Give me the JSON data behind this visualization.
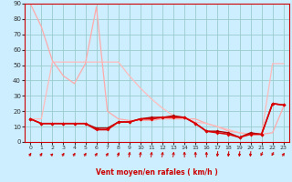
{
  "xlabel": "Vent moyen/en rafales ( km/h )",
  "background_color": "#cceeff",
  "grid_color": "#99cccc",
  "xlim": [
    -0.5,
    23.5
  ],
  "ylim": [
    0,
    90
  ],
  "yticks": [
    0,
    10,
    20,
    30,
    40,
    50,
    60,
    70,
    80,
    90
  ],
  "x_ticks": [
    0,
    1,
    2,
    3,
    4,
    5,
    6,
    7,
    8,
    9,
    10,
    11,
    12,
    13,
    14,
    15,
    16,
    17,
    18,
    19,
    20,
    21,
    22,
    23
  ],
  "line_light1": {
    "x": [
      0,
      1,
      2,
      3,
      4,
      5,
      6,
      7,
      8,
      9,
      10,
      11,
      12,
      13,
      14,
      15,
      16,
      17,
      18,
      19,
      20,
      21,
      22,
      23
    ],
    "y": [
      90,
      75,
      53,
      43,
      38,
      51,
      88,
      20,
      15,
      14,
      14,
      14,
      15,
      15,
      15,
      15,
      12,
      10,
      7,
      6,
      5,
      5,
      6,
      23
    ],
    "color": "#ffaaaa",
    "lw": 0.9
  },
  "line_light2": {
    "x": [
      0,
      1,
      2,
      3,
      4,
      5,
      6,
      7,
      8,
      9,
      10,
      11,
      12,
      13,
      14,
      15,
      16,
      17,
      18,
      19,
      20,
      21,
      22,
      23
    ],
    "y": [
      15,
      15,
      52,
      52,
      52,
      52,
      52,
      52,
      52,
      43,
      35,
      28,
      22,
      17,
      16,
      13,
      12,
      10,
      8,
      6,
      5,
      5,
      51,
      51
    ],
    "color": "#ffbbbb",
    "lw": 0.9
  },
  "line_dark": {
    "x": [
      0,
      1,
      2,
      3,
      4,
      5,
      6,
      7,
      8,
      9,
      10,
      11,
      12,
      13,
      14,
      15,
      16,
      17,
      18,
      19,
      20,
      21,
      22,
      23
    ],
    "y": [
      15,
      12,
      12,
      12,
      12,
      12,
      8,
      8,
      13,
      13,
      15,
      15,
      16,
      16,
      16,
      12,
      7,
      6,
      5,
      3,
      5,
      5,
      25,
      24
    ],
    "color": "#dd0000",
    "lw": 1.2,
    "marker": "D",
    "markersize": 2.0
  },
  "line_dark2": {
    "x": [
      0,
      1,
      2,
      3,
      4,
      5,
      6,
      7,
      8,
      9,
      10,
      11,
      12,
      13,
      14,
      15,
      16,
      17,
      18,
      19,
      20,
      21,
      22,
      23
    ],
    "y": [
      15,
      12,
      12,
      12,
      12,
      12,
      9,
      9,
      13,
      13,
      15,
      16,
      16,
      17,
      16,
      12,
      7,
      7,
      6,
      3,
      6,
      5,
      25,
      24
    ],
    "color": "#aa0000",
    "lw": 1.0,
    "marker": "D",
    "markersize": 2.0
  },
  "arrows": {
    "angles_deg": [
      45,
      45,
      60,
      45,
      45,
      45,
      45,
      45,
      30,
      15,
      15,
      15,
      15,
      15,
      0,
      0,
      0,
      190,
      190,
      190,
      190,
      215,
      220,
      45
    ]
  }
}
